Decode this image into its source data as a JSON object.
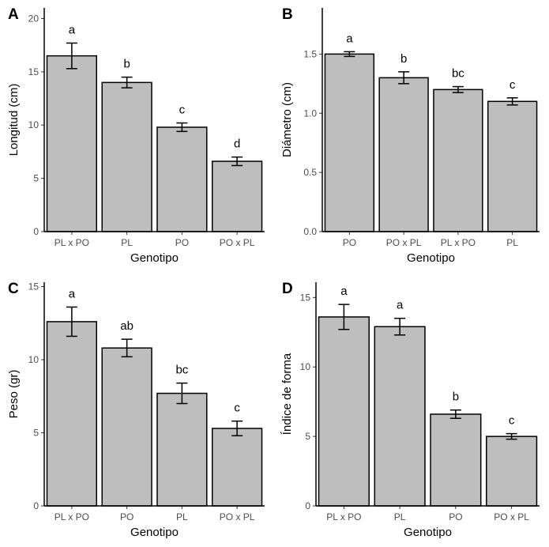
{
  "chart_data": [
    {
      "type": "bar",
      "panel": "A",
      "xlabel": "Genotipo",
      "ylabel": "Longitud (cm)",
      "ylim": [
        0,
        21
      ],
      "yticks": [
        0,
        5,
        10,
        15,
        20
      ],
      "ytick_labels": [
        "0",
        "5",
        "10",
        "15",
        "20"
      ],
      "categories": [
        "PL x PO",
        "PL",
        "PO",
        "PO x PL"
      ],
      "values": [
        16.5,
        14.0,
        9.8,
        6.6
      ],
      "errors": [
        1.2,
        0.5,
        0.4,
        0.4
      ],
      "significance": [
        "a",
        "b",
        "c",
        "d"
      ]
    },
    {
      "type": "bar",
      "panel": "B",
      "xlabel": "Genotipo",
      "ylabel": "Diámetro (cm)",
      "ylim": [
        0,
        1.89
      ],
      "yticks": [
        0,
        0.5,
        1.0,
        1.5
      ],
      "ytick_labels": [
        "0.0",
        "0.5",
        "1.0",
        "1.5"
      ],
      "categories": [
        "PO",
        "PO x PL",
        "PL x PO",
        "PL"
      ],
      "values": [
        1.5,
        1.3,
        1.2,
        1.1
      ],
      "errors": [
        0.02,
        0.05,
        0.025,
        0.03
      ],
      "significance": [
        "a",
        "b",
        "bc",
        "c"
      ]
    },
    {
      "type": "bar",
      "panel": "C",
      "xlabel": "Genotipo",
      "ylabel": "Peso (gr)",
      "ylim": [
        0,
        15.3
      ],
      "yticks": [
        0,
        5,
        10,
        15
      ],
      "ytick_labels": [
        "0",
        "5",
        "10",
        "15"
      ],
      "categories": [
        "PL x PO",
        "PO",
        "PL",
        "PO x PL"
      ],
      "values": [
        12.6,
        10.8,
        7.7,
        5.3
      ],
      "errors": [
        1.0,
        0.6,
        0.7,
        0.5
      ],
      "significance": [
        "a",
        "ab",
        "bc",
        "c"
      ]
    },
    {
      "type": "bar",
      "panel": "D",
      "xlabel": "Genotipo",
      "ylabel": "Índice de forma",
      "ylim": [
        0,
        16.1
      ],
      "yticks": [
        0,
        5,
        10,
        15
      ],
      "ytick_labels": [
        "0",
        "5",
        "10",
        "15"
      ],
      "categories": [
        "PL x PO",
        "PL",
        "PO",
        "PO x PL"
      ],
      "values": [
        13.6,
        12.9,
        6.6,
        5.0
      ],
      "errors": [
        0.9,
        0.6,
        0.3,
        0.2
      ],
      "significance": [
        "a",
        "a",
        "b",
        "c"
      ]
    }
  ]
}
